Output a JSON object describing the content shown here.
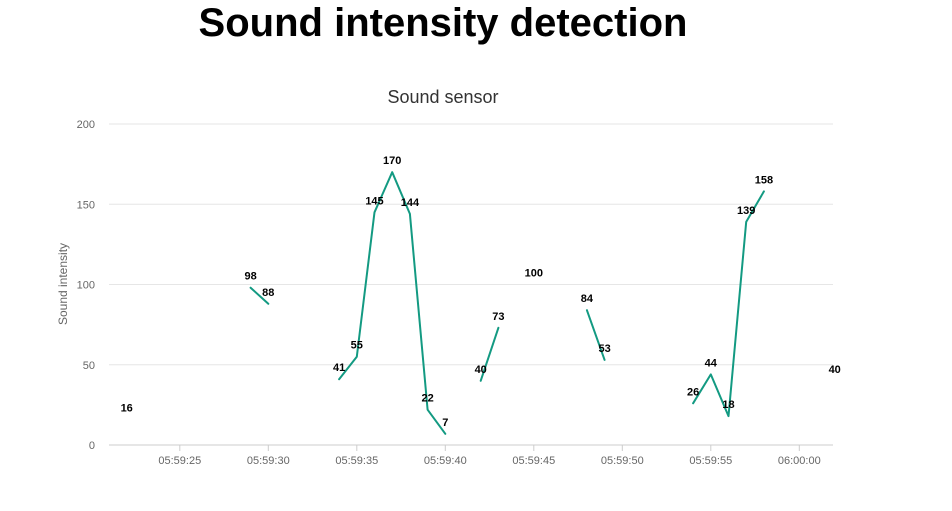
{
  "page": {
    "title": "Sound intensity detection"
  },
  "chart_data": {
    "type": "line",
    "title": "Sound sensor",
    "xlabel": "",
    "ylabel": "Sound intensity",
    "ylim": [
      0,
      200
    ],
    "y_ticks": [
      "0",
      "50",
      "100",
      "150",
      "200"
    ],
    "x_range": [
      "05:59:21",
      "06:00:02"
    ],
    "x_ticks": [
      "05:59:25",
      "05:59:30",
      "05:59:35",
      "05:59:40",
      "05:59:45",
      "05:59:50",
      "05:59:55",
      "06:00:00"
    ],
    "grid": "horizontal",
    "line_color": "#139a82",
    "series": [
      {
        "points": [
          {
            "x": "05:59:22",
            "y": 16
          },
          {
            "x": null,
            "y": null
          },
          {
            "x": "05:59:29",
            "y": 98
          },
          {
            "x": "05:59:30",
            "y": 88
          },
          {
            "x": null,
            "y": null
          },
          {
            "x": "05:59:34",
            "y": 41
          },
          {
            "x": "05:59:35",
            "y": 55
          },
          {
            "x": "05:59:36",
            "y": 145
          },
          {
            "x": "05:59:37",
            "y": 170
          },
          {
            "x": "05:59:38",
            "y": 144
          },
          {
            "x": "05:59:39",
            "y": 22
          },
          {
            "x": "05:59:40",
            "y": 7
          },
          {
            "x": null,
            "y": null
          },
          {
            "x": "05:59:42",
            "y": 40
          },
          {
            "x": "05:59:43",
            "y": 73
          },
          {
            "x": null,
            "y": null
          },
          {
            "x": "05:59:45",
            "y": 100
          },
          {
            "x": null,
            "y": null
          },
          {
            "x": "05:59:48",
            "y": 84
          },
          {
            "x": "05:59:49",
            "y": 53
          },
          {
            "x": null,
            "y": null
          },
          {
            "x": "05:59:54",
            "y": 26
          },
          {
            "x": "05:59:55",
            "y": 44
          },
          {
            "x": "05:59:56",
            "y": 18
          },
          {
            "x": "05:59:57",
            "y": 139
          },
          {
            "x": "05:59:58",
            "y": 158
          },
          {
            "x": null,
            "y": null
          },
          {
            "x": "06:00:02",
            "y": 40
          }
        ]
      }
    ]
  }
}
